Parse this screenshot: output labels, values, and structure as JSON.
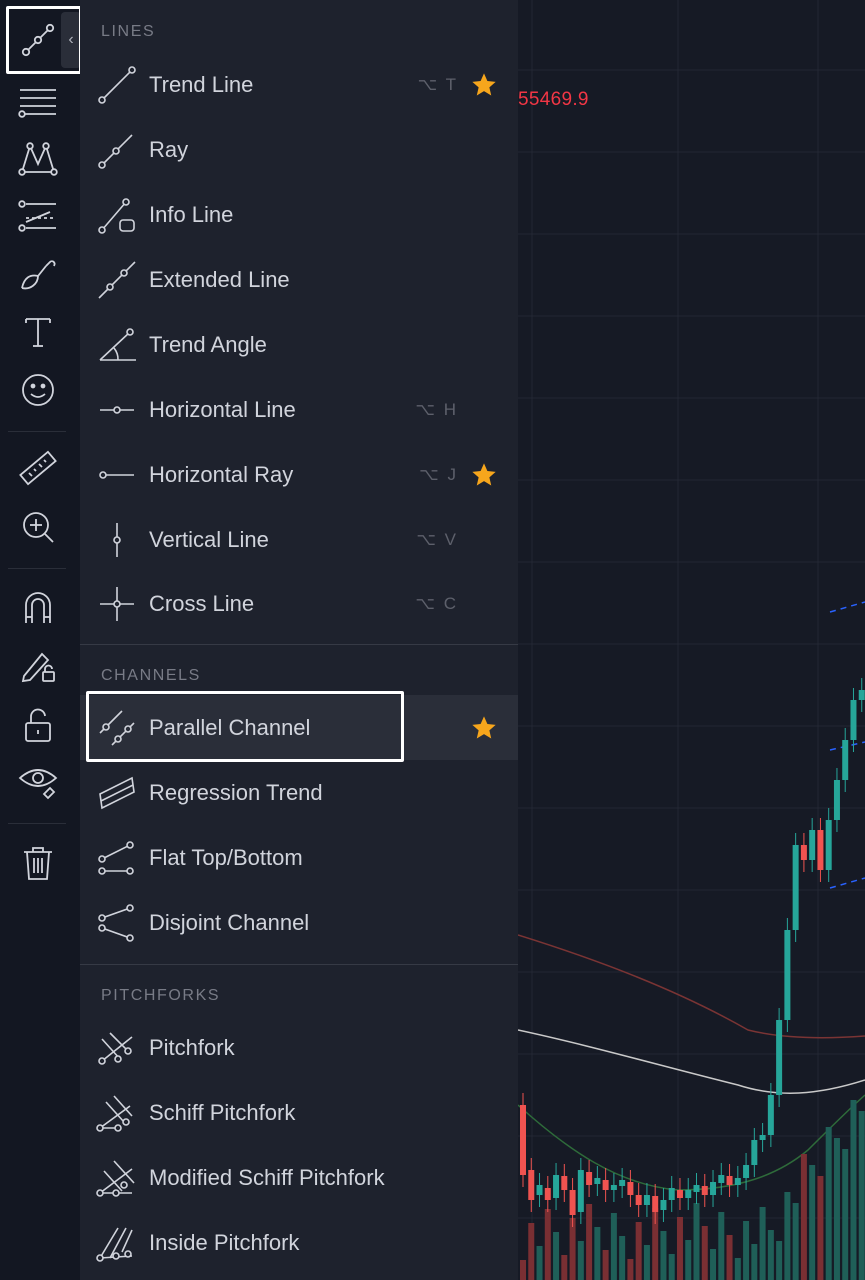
{
  "chart": {
    "price_label": "55469.9",
    "colors": {
      "up": "#26a69a",
      "down": "#ef5350",
      "ma_red": "#8b3a3a",
      "ma_white": "#c8c8c8",
      "ma_green": "#2e6b3a",
      "dash_blue": "#2962ff"
    }
  },
  "toolbar": {
    "items": [
      {
        "name": "trend-line-tools-icon"
      },
      {
        "name": "fib-tools-icon"
      },
      {
        "name": "patterns-icon"
      },
      {
        "name": "prediction-tools-icon"
      },
      {
        "name": "brush-icon"
      },
      {
        "name": "text-icon"
      },
      {
        "name": "emoji-icon"
      },
      {
        "name": "ruler-icon"
      },
      {
        "name": "zoom-in-icon"
      },
      {
        "name": "magnet-icon"
      },
      {
        "name": "stay-in-drawing-mode-icon"
      },
      {
        "name": "lock-icon"
      },
      {
        "name": "hide-icon"
      },
      {
        "name": "trash-icon"
      }
    ]
  },
  "panel": {
    "sections": [
      {
        "title": "LINES",
        "items": [
          {
            "label": "Trend Line",
            "shortcut": "⌥ T",
            "starred": true
          },
          {
            "label": "Ray",
            "shortcut": "",
            "starred": false
          },
          {
            "label": "Info Line",
            "shortcut": "",
            "starred": false
          },
          {
            "label": "Extended Line",
            "shortcut": "",
            "starred": false
          },
          {
            "label": "Trend Angle",
            "shortcut": "",
            "starred": false
          },
          {
            "label": "Horizontal Line",
            "shortcut": "⌥ H",
            "starred": false
          },
          {
            "label": "Horizontal Ray",
            "shortcut": "⌥ J",
            "starred": true
          },
          {
            "label": "Vertical Line",
            "shortcut": "⌥ V",
            "starred": false
          },
          {
            "label": "Cross Line",
            "shortcut": "⌥ C",
            "starred": false
          }
        ]
      },
      {
        "title": "CHANNELS",
        "items": [
          {
            "label": "Parallel Channel",
            "shortcut": "",
            "starred": true,
            "selected": true
          },
          {
            "label": "Regression Trend",
            "shortcut": "",
            "starred": false
          },
          {
            "label": "Flat Top/Bottom",
            "shortcut": "",
            "starred": false
          },
          {
            "label": "Disjoint Channel",
            "shortcut": "",
            "starred": false
          }
        ]
      },
      {
        "title": "PITCHFORKS",
        "items": [
          {
            "label": "Pitchfork",
            "shortcut": "",
            "starred": false
          },
          {
            "label": "Schiff Pitchfork",
            "shortcut": "",
            "starred": false
          },
          {
            "label": "Modified Schiff Pitchfork",
            "shortcut": "",
            "starred": false
          },
          {
            "label": "Inside Pitchfork",
            "shortcut": "",
            "starred": false
          }
        ]
      }
    ],
    "star_color": "#f7a61c"
  }
}
